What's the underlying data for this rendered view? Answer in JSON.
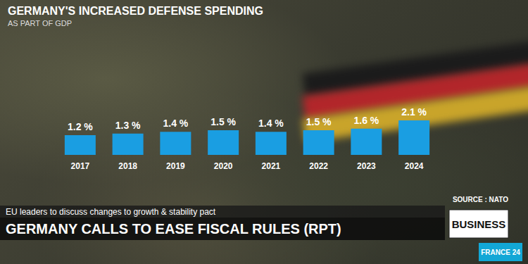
{
  "chart_data": {
    "type": "bar",
    "title": "GERMANY'S INCREASED DEFENSE SPENDING",
    "subtitle": "AS PART OF GDP",
    "categories": [
      "2017",
      "2018",
      "2019",
      "2020",
      "2021",
      "2022",
      "2023",
      "2024"
    ],
    "values": [
      1.2,
      1.3,
      1.4,
      1.5,
      1.4,
      1.5,
      1.6,
      2.1
    ],
    "value_labels": [
      "1.2 %",
      "1.3 %",
      "1.4 %",
      "1.5 %",
      "1.4 %",
      "1.5 %",
      "1.6 %",
      "2.1 %"
    ],
    "color": "#1a9ee2",
    "ylim": [
      0,
      2.1
    ],
    "grid": false,
    "data_labels": true,
    "tick_labels": "x",
    "source": "SOURCE : NATO"
  },
  "banner": {
    "kicker": "EU leaders to discuss changes to growth & stability pact",
    "headline": "GERMANY CALLS TO EASE FISCAL RULES (RPT)",
    "section": "BUSINESS",
    "logo": "FRANCE 24"
  }
}
